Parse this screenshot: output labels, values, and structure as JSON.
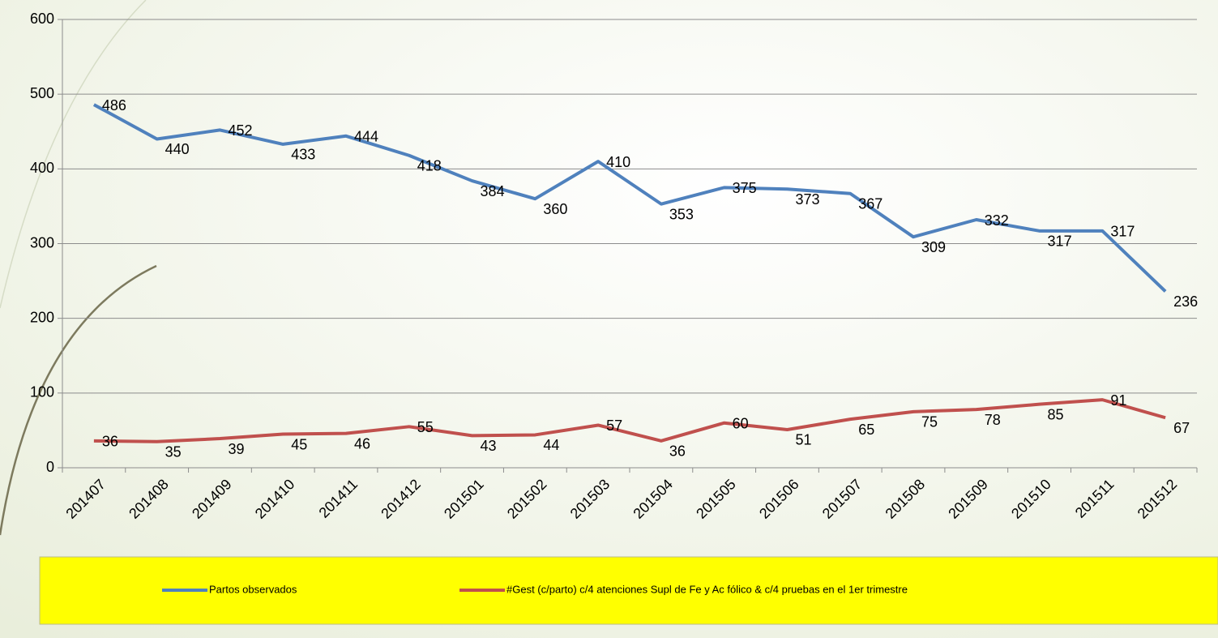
{
  "chart_data": {
    "type": "line",
    "categories": [
      "201407",
      "201408",
      "201409",
      "201410",
      "201411",
      "201412",
      "201501",
      "201502",
      "201503",
      "201504",
      "201505",
      "201506",
      "201507",
      "201508",
      "201509",
      "201510",
      "201511",
      "201512"
    ],
    "series": [
      {
        "name": "Partos observados",
        "color": "#4f81bd",
        "values": [
          486,
          440,
          452,
          433,
          444,
          418,
          384,
          360,
          410,
          353,
          375,
          373,
          367,
          309,
          332,
          317,
          317,
          236
        ]
      },
      {
        "name": "#Gest (c/parto) c/4 atenciones Supl de Fe y Ac fólico & c/4 pruebas en el 1er trimestre",
        "color": "#c0504d",
        "values": [
          36,
          35,
          39,
          45,
          46,
          55,
          43,
          44,
          57,
          36,
          60,
          51,
          65,
          75,
          78,
          85,
          91,
          67
        ]
      }
    ],
    "ylim": [
      0,
      600
    ],
    "yticks": [
      0,
      100,
      200,
      300,
      400,
      500,
      600
    ],
    "grid": true,
    "legend": "bottom"
  }
}
